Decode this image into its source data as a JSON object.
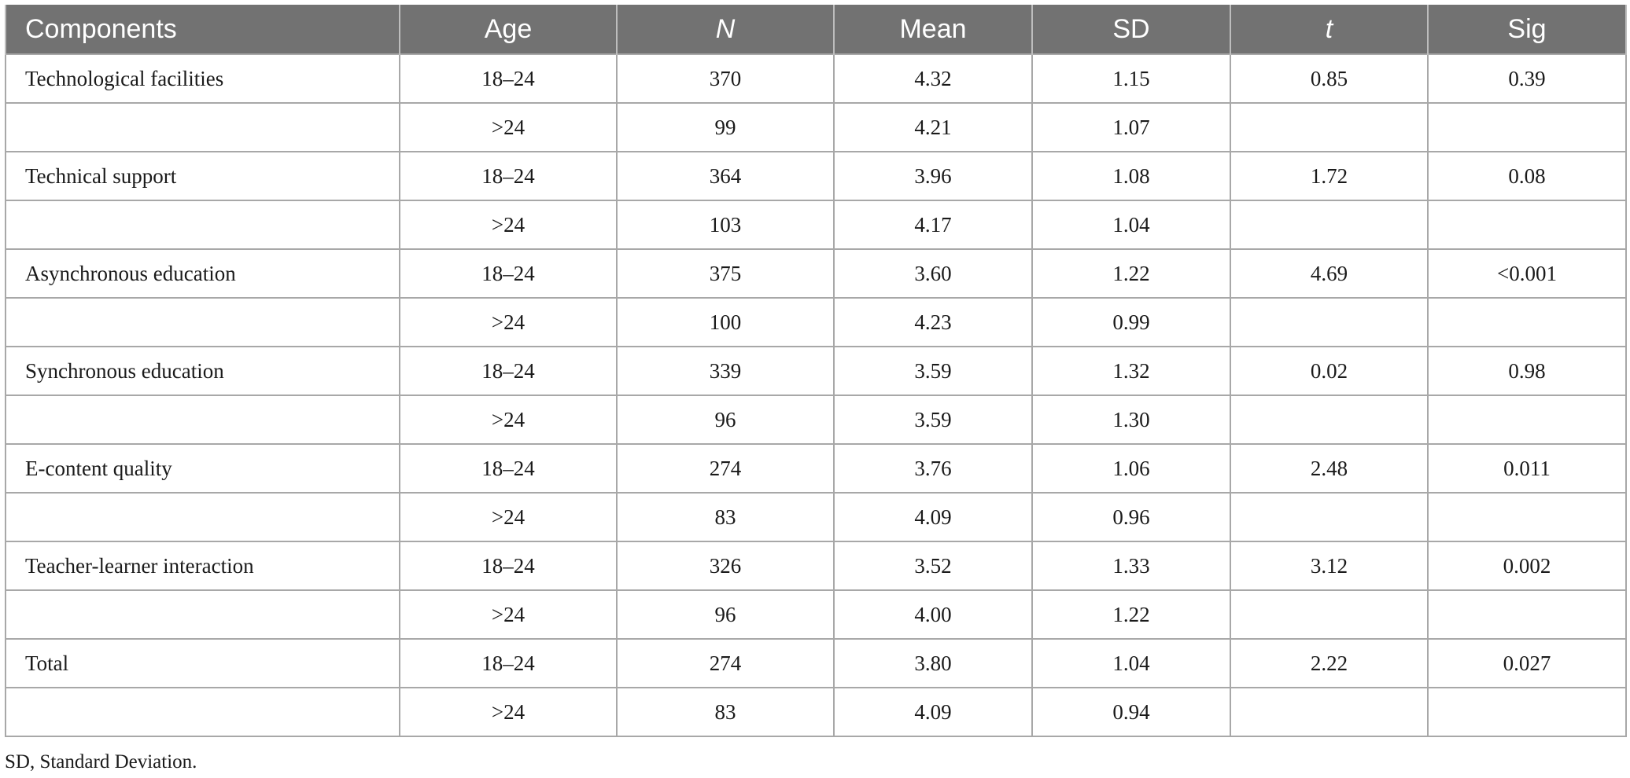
{
  "table": {
    "headers": [
      "Components",
      "Age",
      "N",
      "Mean",
      "SD",
      "t",
      "Sig"
    ],
    "rows": [
      [
        "Technological facilities",
        "18–24",
        "370",
        "4.32",
        "1.15",
        "0.85",
        "0.39"
      ],
      [
        "",
        ">24",
        "99",
        "4.21",
        "1.07",
        "",
        ""
      ],
      [
        "Technical support",
        "18–24",
        "364",
        "3.96",
        "1.08",
        "1.72",
        "0.08"
      ],
      [
        "",
        ">24",
        "103",
        "4.17",
        "1.04",
        "",
        ""
      ],
      [
        "Asynchronous education",
        "18–24",
        "375",
        "3.60",
        "1.22",
        "4.69",
        "<0.001"
      ],
      [
        "",
        ">24",
        "100",
        "4.23",
        "0.99",
        "",
        ""
      ],
      [
        "Synchronous education",
        "18–24",
        "339",
        "3.59",
        "1.32",
        "0.02",
        "0.98"
      ],
      [
        "",
        ">24",
        "96",
        "3.59",
        "1.30",
        "",
        ""
      ],
      [
        "E-content quality",
        "18–24",
        "274",
        "3.76",
        "1.06",
        "2.48",
        "0.011"
      ],
      [
        "",
        ">24",
        "83",
        "4.09",
        "0.96",
        "",
        ""
      ],
      [
        "Teacher-learner interaction",
        "18–24",
        "326",
        "3.52",
        "1.33",
        "3.12",
        "0.002"
      ],
      [
        "",
        ">24",
        "96",
        "4.00",
        "1.22",
        "",
        ""
      ],
      [
        "Total",
        "18–24",
        "274",
        "3.80",
        "1.04",
        "2.22",
        "0.027"
      ],
      [
        "",
        ">24",
        "83",
        "4.09",
        "0.94",
        "",
        ""
      ]
    ]
  },
  "footnote": "SD, Standard Deviation."
}
